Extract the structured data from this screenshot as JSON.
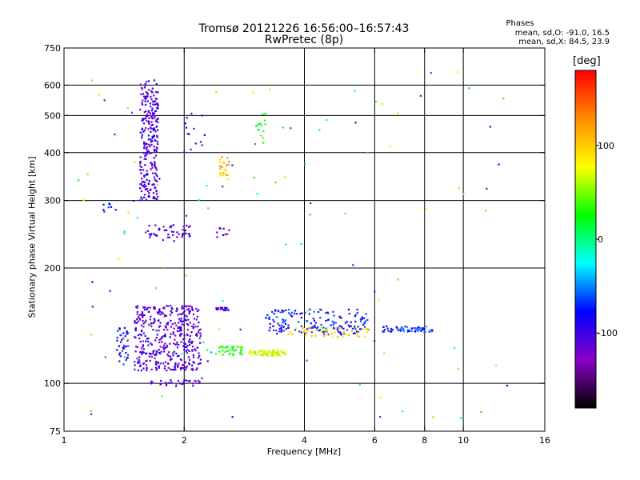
{
  "chart_data": {
    "type": "scatter",
    "title": "Tromsø 20121226 16:56:00–16:57:43",
    "subtitle": "RwPretec (8p)",
    "annotation": {
      "heading": "Phases",
      "line1": "mean, sd,O: -91.0, 16.5",
      "line2": "mean, sd,X:  84.5, 23.9"
    },
    "xlabel": "Frequency [MHz]",
    "ylabel": "Stationary phase Virtual Height [km]",
    "x_scale": "log",
    "y_scale": "log",
    "xlim": [
      1,
      16
    ],
    "ylim": [
      75,
      750
    ],
    "x_ticks": [
      1,
      2,
      4,
      6,
      8,
      10,
      16
    ],
    "y_ticks": [
      75,
      100,
      200,
      300,
      400,
      500,
      600,
      750
    ],
    "x_gridlines": [
      2,
      4,
      6,
      8,
      10
    ],
    "y_gridlines": [
      100,
      200,
      300,
      400,
      500,
      600
    ],
    "colorbar": {
      "label": "[deg]",
      "range": [
        -180,
        180
      ],
      "ticks": [
        100,
        0,
        -100
      ],
      "colors": [
        "#ff0000",
        "#ff8c00",
        "#ffff00",
        "#00ff00",
        "#00ffff",
        "#0000ff",
        "#8a00c8",
        "#000000"
      ]
    },
    "clusters": [
      {
        "f": [
          1.55,
          1.72
        ],
        "h": [
          300,
          620
        ],
        "n": 260,
        "phase": -105
      },
      {
        "f": [
          2.0,
          2.3
        ],
        "h": [
          400,
          520
        ],
        "n": 14,
        "phase": -100
      },
      {
        "f": [
          2.45,
          2.6
        ],
        "h": [
          340,
          390
        ],
        "n": 26,
        "phase": 110
      },
      {
        "f": [
          3.0,
          3.2
        ],
        "h": [
          420,
          510
        ],
        "n": 16,
        "phase": 20
      },
      {
        "f": [
          1.25,
          1.35
        ],
        "h": [
          280,
          300
        ],
        "n": 8,
        "phase": -85
      },
      {
        "f": [
          1.6,
          2.1
        ],
        "h": [
          235,
          260
        ],
        "n": 50,
        "phase": -105
      },
      {
        "f": [
          2.4,
          2.6
        ],
        "h": [
          240,
          255
        ],
        "n": 10,
        "phase": -105
      },
      {
        "f": [
          1.5,
          2.2
        ],
        "h": [
          108,
          160
        ],
        "n": 420,
        "phase": -108
      },
      {
        "f": [
          1.35,
          1.45
        ],
        "h": [
          112,
          140
        ],
        "n": 40,
        "phase": -80
      },
      {
        "f": [
          1.6,
          2.2
        ],
        "h": [
          98,
          102
        ],
        "n": 30,
        "phase": -110
      },
      {
        "f": [
          2.4,
          2.6
        ],
        "h": [
          155,
          158
        ],
        "n": 20,
        "phase": -110
      },
      {
        "f": [
          2.4,
          2.8
        ],
        "h": [
          118,
          125
        ],
        "n": 45,
        "phase": 30
      },
      {
        "f": [
          2.9,
          3.6
        ],
        "h": [
          118,
          122
        ],
        "n": 70,
        "phase": 70
      },
      {
        "f": [
          3.2,
          5.8
        ],
        "h": [
          134,
          156
        ],
        "n": 170,
        "phase": -80
      },
      {
        "f": [
          3.6,
          5.8
        ],
        "h": [
          132,
          140
        ],
        "n": 50,
        "phase": 90
      },
      {
        "f": [
          6.2,
          8.5
        ],
        "h": [
          136,
          141
        ],
        "n": 60,
        "phase": -70
      },
      {
        "f": [
          1.05,
          13
        ],
        "h": [
          80,
          650
        ],
        "n": 110,
        "phase": -20
      }
    ]
  }
}
